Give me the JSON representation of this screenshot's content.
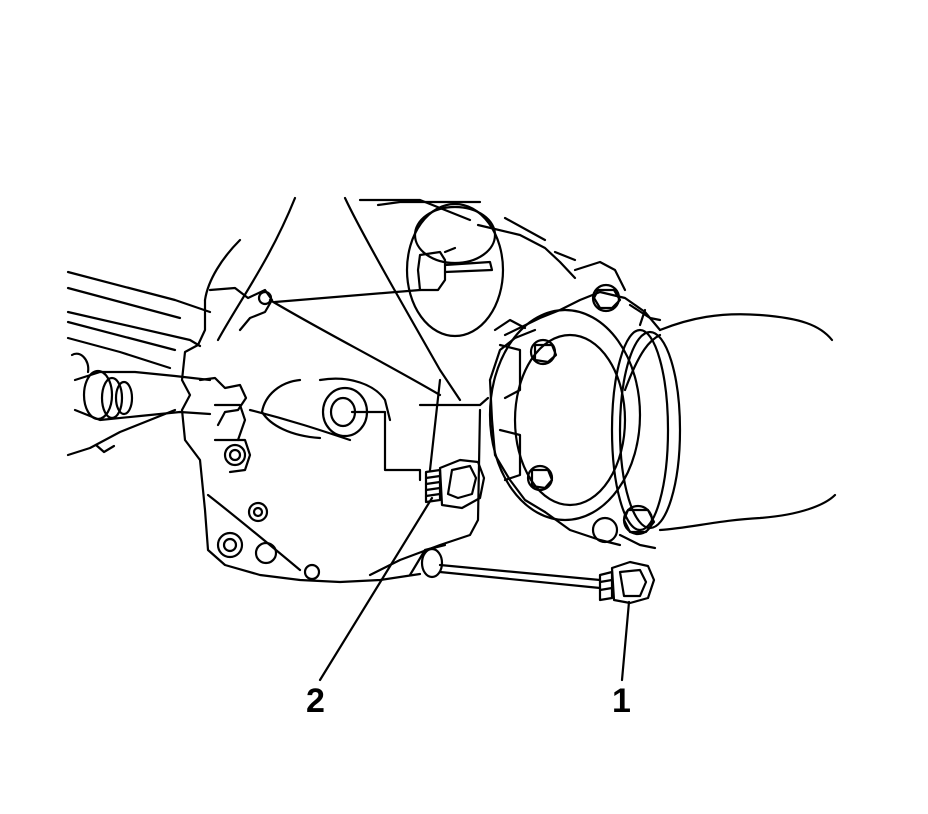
{
  "diagram": {
    "callouts": [
      {
        "label": "1"
      },
      {
        "label": "2"
      }
    ]
  }
}
